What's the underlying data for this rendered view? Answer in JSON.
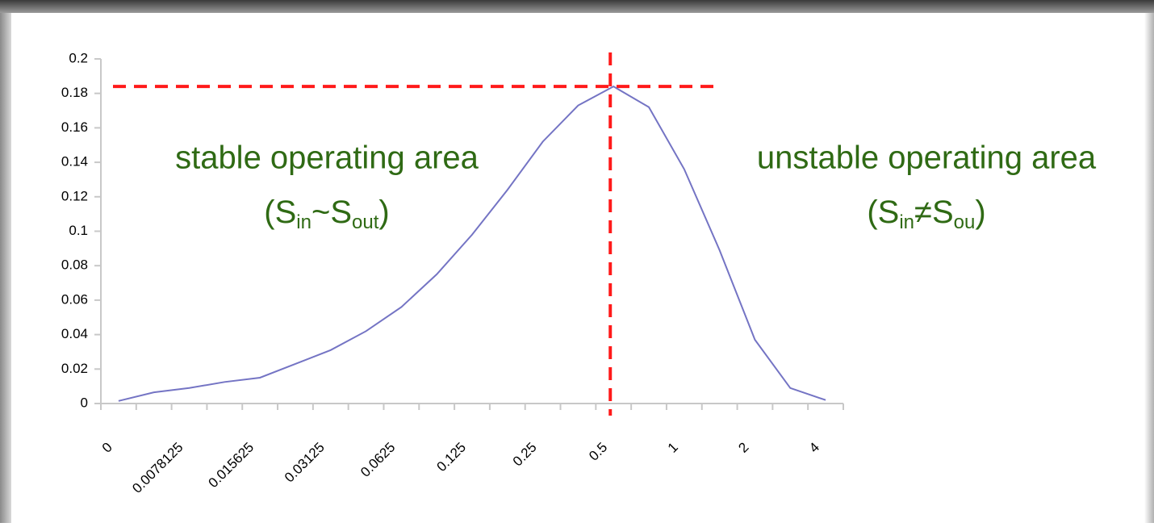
{
  "chart_data": {
    "type": "line",
    "categories": [
      "0",
      null,
      "0.0078125",
      null,
      "0.015625",
      null,
      "0.03125",
      null,
      "0.0625",
      null,
      "0.125",
      null,
      "0.25",
      null,
      "0.5",
      null,
      "1",
      null,
      "2",
      null,
      "4"
    ],
    "series": [
      {
        "color": "#7474c4",
        "values": [
          0.0015,
          0.0065,
          0.009,
          0.0125,
          0.015,
          0.023,
          0.031,
          0.042,
          0.056,
          0.075,
          0.098,
          0.124,
          0.152,
          0.173,
          0.184,
          0.172,
          0.136,
          0.089,
          0.037,
          0.009,
          0.002
        ]
      }
    ],
    "ylim": [
      0,
      0.2
    ],
    "yticks": [
      0,
      0.02,
      0.04,
      0.06,
      0.08,
      0.1,
      0.12,
      0.14,
      0.16,
      0.18,
      0.2
    ],
    "reference_y": 0.184,
    "reference_color": "#ff1a1a",
    "annotations": [
      {
        "line1": "stable operating area",
        "line2": [
          "(S",
          "in",
          "~S",
          "out",
          ")"
        ]
      },
      {
        "line1": "unstable operating area",
        "line2": [
          "(S",
          "in",
          "≠S",
          "ou",
          ")"
        ]
      }
    ]
  }
}
